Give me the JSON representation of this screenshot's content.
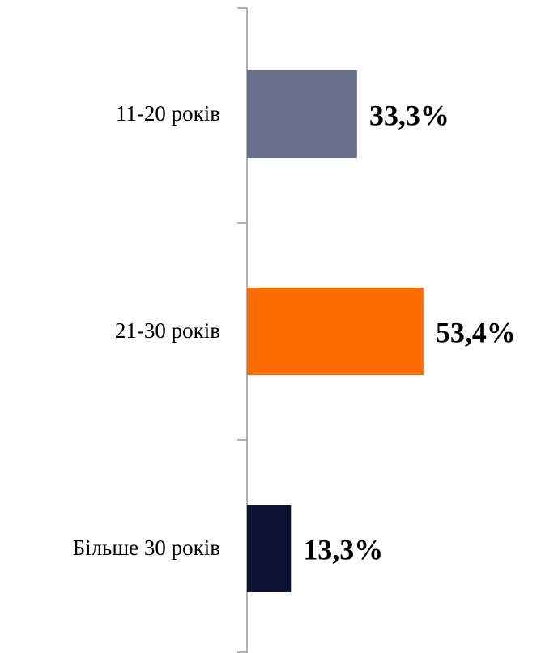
{
  "chart_data": {
    "type": "bar",
    "orientation": "horizontal",
    "categories": [
      "11-20 років",
      "21-30 років",
      "Більше 30 років"
    ],
    "values": [
      33.3,
      53.4,
      13.3
    ],
    "value_labels": [
      "33,3%",
      "53,4%",
      "13,3%"
    ],
    "colors": [
      "#6b6f8e",
      "#ff6d00",
      "#0b1232"
    ]
  }
}
